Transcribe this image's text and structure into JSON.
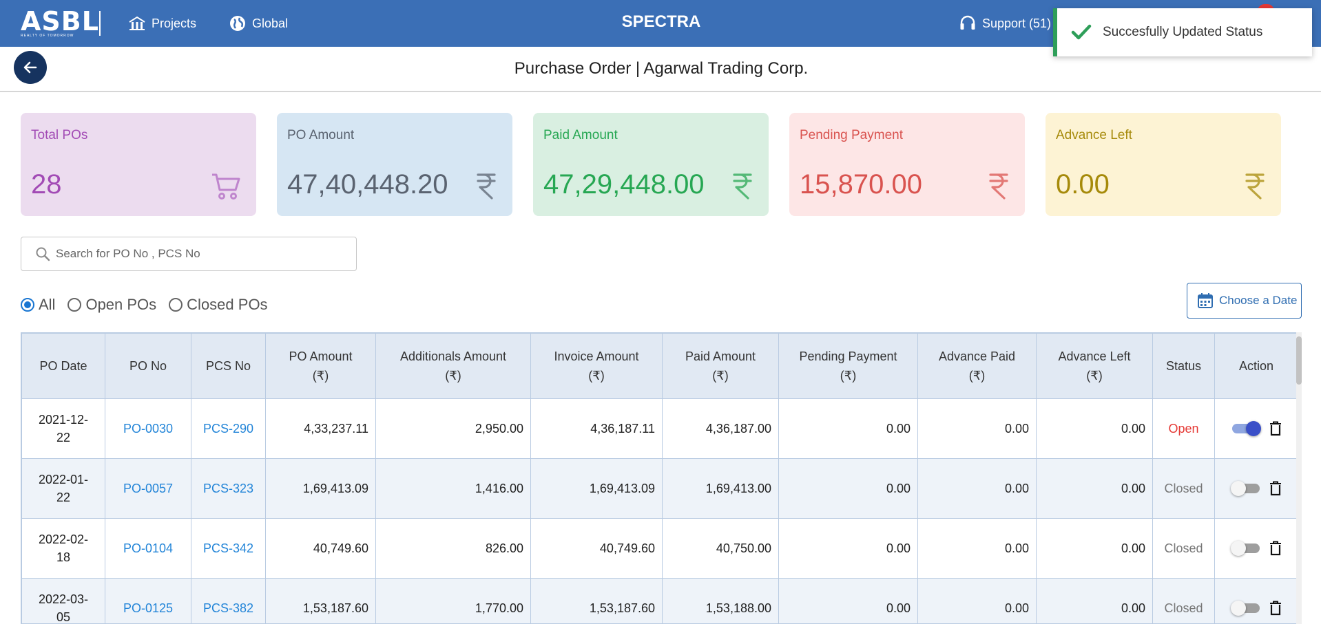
{
  "navbar": {
    "logo_text": "ASBL",
    "logo_tag": "REALTY OF TOMORROW",
    "projects_label": "Projects",
    "global_label": "Global",
    "brand": "SPECTRA",
    "support_label": "Support (51)"
  },
  "toast": {
    "message": "Succesfully Updated Status",
    "color": "#2e9e59"
  },
  "header": {
    "title": "Purchase Order | Agarwal Trading Corp."
  },
  "cards": [
    {
      "label": "Total POs",
      "value": "28",
      "icon": "cart-icon",
      "bg": "#ecdcef",
      "color": "#a24bb5"
    },
    {
      "label": "PO Amount",
      "value": "47,40,448.20",
      "icon": "rupee-icon",
      "bg": "#d6e6f3",
      "color": "#5a6370"
    },
    {
      "label": "Paid Amount",
      "value": "47,29,448.00",
      "icon": "rupee-icon",
      "bg": "#d9efe1",
      "color": "#27a753"
    },
    {
      "label": "Pending Payment",
      "value": "15,870.00",
      "icon": "rupee-icon",
      "bg": "#fde6e6",
      "color": "#d9534f"
    },
    {
      "label": "Advance Left",
      "value": "0.00",
      "icon": "rupee-icon",
      "bg": "#fdf3d4",
      "color": "#a68a0a"
    }
  ],
  "search": {
    "placeholder": "Search for PO No , PCS No"
  },
  "filters": {
    "all": "All",
    "open": "Open POs",
    "closed": "Closed POs",
    "selected": "All"
  },
  "date_button": {
    "label": "Choose a Date"
  },
  "table": {
    "headers": [
      [
        "PO Date",
        ""
      ],
      [
        "PO No",
        ""
      ],
      [
        "PCS No",
        ""
      ],
      [
        "PO Amount",
        "(₹)"
      ],
      [
        "Additionals Amount",
        "(₹)"
      ],
      [
        "Invoice Amount",
        "(₹)"
      ],
      [
        "Paid Amount",
        "(₹)"
      ],
      [
        "Pending Payment",
        "(₹)"
      ],
      [
        "Advance Paid",
        "(₹)"
      ],
      [
        "Advance Left",
        "(₹)"
      ],
      [
        "Status",
        ""
      ],
      [
        "Action",
        ""
      ]
    ],
    "rows": [
      {
        "date1": "2021-12-",
        "date2": "22",
        "po": "PO-0030",
        "pcs": "PCS-290",
        "po_amount": "4,33,237.11",
        "additionals": "2,950.00",
        "invoice": "4,36,187.11",
        "paid": "4,36,187.00",
        "pending": "0.00",
        "adv_paid": "0.00",
        "adv_left": "0.00",
        "status": "Open",
        "toggle_on": true
      },
      {
        "date1": "2022-01-",
        "date2": "22",
        "po": "PO-0057",
        "pcs": "PCS-323",
        "po_amount": "1,69,413.09",
        "additionals": "1,416.00",
        "invoice": "1,69,413.09",
        "paid": "1,69,413.00",
        "pending": "0.00",
        "adv_paid": "0.00",
        "adv_left": "0.00",
        "status": "Closed",
        "toggle_on": false
      },
      {
        "date1": "2022-02-",
        "date2": "18",
        "po": "PO-0104",
        "pcs": "PCS-342",
        "po_amount": "40,749.60",
        "additionals": "826.00",
        "invoice": "40,749.60",
        "paid": "40,750.00",
        "pending": "0.00",
        "adv_paid": "0.00",
        "adv_left": "0.00",
        "status": "Closed",
        "toggle_on": false
      },
      {
        "date1": "2022-03-",
        "date2": "05",
        "po": "PO-0125",
        "pcs": "PCS-382",
        "po_amount": "1,53,187.60",
        "additionals": "1,770.00",
        "invoice": "1,53,187.60",
        "paid": "1,53,188.00",
        "pending": "0.00",
        "adv_paid": "0.00",
        "adv_left": "0.00",
        "status": "Closed",
        "toggle_on": false
      }
    ]
  }
}
